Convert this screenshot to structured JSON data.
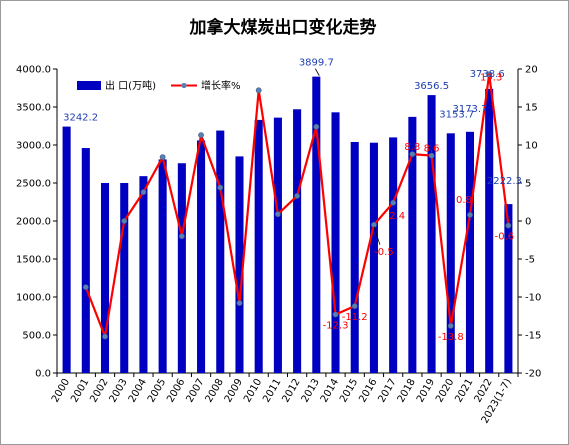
{
  "chart_data": {
    "type": "bar",
    "title": "加拿大煤炭出口变化走势",
    "categories": [
      "2000",
      "2001",
      "2002",
      "2003",
      "2004",
      "2005",
      "2006",
      "2007",
      "2008",
      "2009",
      "2010",
      "2011",
      "2012",
      "2013",
      "2014",
      "2015",
      "2016",
      "2017",
      "2018",
      "2019",
      "2020",
      "2021",
      "2022",
      "2023(1-7)"
    ],
    "series": [
      {
        "name": "出 口(万吨)",
        "type": "bar",
        "axis": "left",
        "color": "#0000c0",
        "values": [
          3242.2,
          2960,
          2500,
          2500,
          2590,
          2810,
          2760,
          3060,
          3190,
          2850,
          3330,
          3360,
          3470,
          3899.7,
          3430,
          3040,
          3030,
          3100,
          3370,
          3656.5,
          3153.7,
          3173.7,
          3738.6,
          2222.3
        ]
      },
      {
        "name": "增长率%",
        "type": "line",
        "axis": "right",
        "color": "#ff0000",
        "marker_color": "#5a7fb0",
        "values": [
          null,
          -8.7,
          -15.2,
          0,
          3.8,
          8.4,
          -2.0,
          11.3,
          4.4,
          -10.8,
          17.2,
          0.9,
          3.3,
          12.4,
          -12.3,
          -11.2,
          -0.5,
          2.4,
          8.8,
          8.6,
          -13.8,
          0.8,
          19.3,
          -0.6
        ]
      }
    ],
    "y_left": {
      "min": 0,
      "max": 4000,
      "step": 500,
      "ticks": [
        "0.0",
        "500.0",
        "1000.0",
        "1500.0",
        "2000.0",
        "2500.0",
        "3000.0",
        "3500.0",
        "4000.0"
      ]
    },
    "y_right": {
      "min": -20,
      "max": 20,
      "step": 5,
      "ticks": [
        "-20",
        "-15",
        "-10",
        "-5",
        "0",
        "5",
        "10",
        "15",
        "20"
      ]
    },
    "bar_labels": [
      {
        "index": 0,
        "text": "3242.2"
      },
      {
        "index": 13,
        "text": "3899.7"
      },
      {
        "index": 19,
        "text": "3656.5"
      },
      {
        "index": 20,
        "text": "3153.7"
      },
      {
        "index": 21,
        "text": "3173.7"
      },
      {
        "index": 22,
        "text": "3738.6"
      },
      {
        "index": 23,
        "text": "2222.3"
      }
    ],
    "line_labels": [
      {
        "index": 14,
        "text": "-12.3"
      },
      {
        "index": 15,
        "text": "-11.2"
      },
      {
        "index": 16,
        "text": "-0.5"
      },
      {
        "index": 17,
        "text": "2.4"
      },
      {
        "index": 18,
        "text": "8.8"
      },
      {
        "index": 19,
        "text": "8.6"
      },
      {
        "index": 20,
        "text": "-13.8"
      },
      {
        "index": 21,
        "text": "0.8"
      },
      {
        "index": 22,
        "text": "19.3"
      },
      {
        "index": 23,
        "text": "-0.6"
      }
    ],
    "grid": false,
    "legend": "top-left"
  }
}
